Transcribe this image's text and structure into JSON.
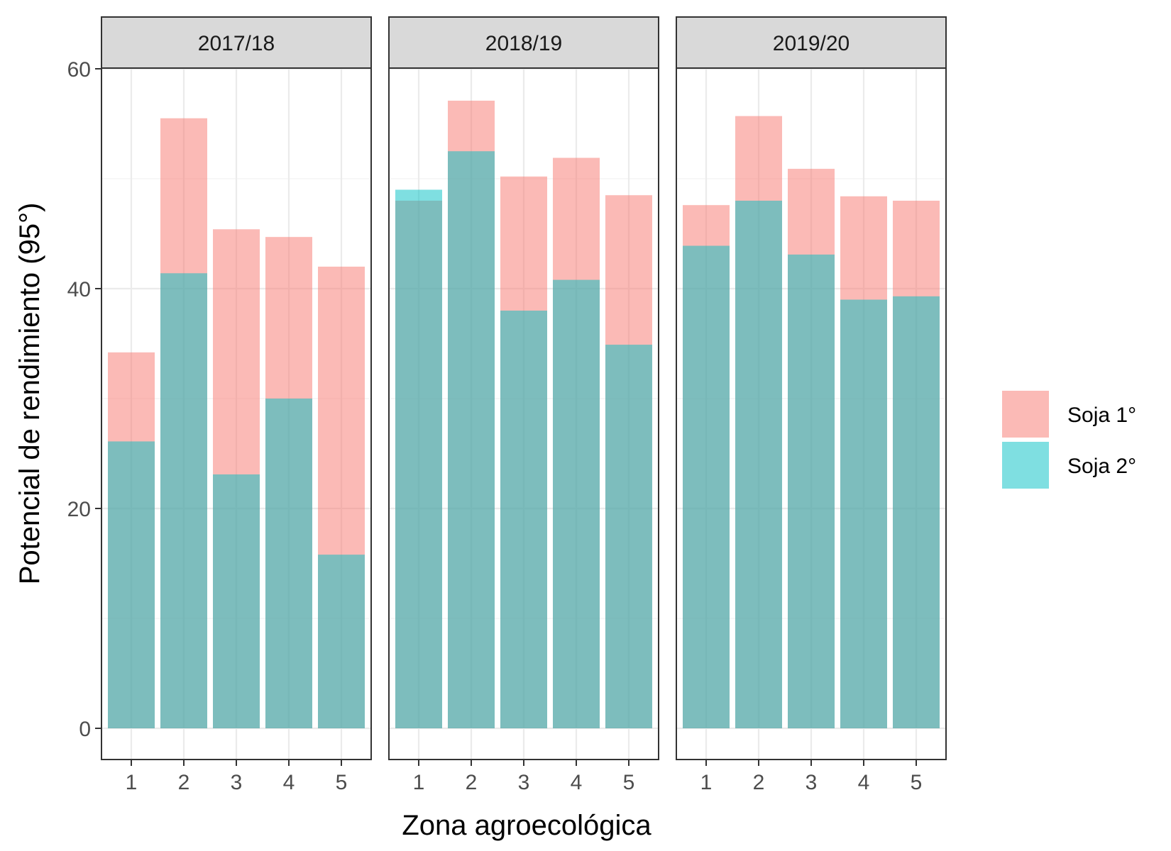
{
  "chart_data": {
    "type": "bar",
    "subtype": "faceted-overlapping-bar",
    "xlabel": "Zona agroecológica",
    "ylabel": "Potencial de rendimiento (95°)",
    "ylim": [
      0,
      60
    ],
    "yticks": [
      0,
      20,
      40,
      60
    ],
    "grid": true,
    "legend_position": "right",
    "categories": [
      "1",
      "2",
      "3",
      "4",
      "5"
    ],
    "colors": {
      "Soja 1°": "#f8766d",
      "Soja 2°": "#00bfc4"
    },
    "legend": [
      "Soja 1°",
      "Soja 2°"
    ],
    "panels": [
      {
        "title": "2017/18",
        "series": [
          {
            "name": "Soja 1°",
            "values": [
              34.2,
              55.5,
              45.4,
              44.7,
              42.0
            ]
          },
          {
            "name": "Soja 2°",
            "values": [
              26.1,
              41.4,
              23.1,
              30.0,
              15.8
            ]
          }
        ]
      },
      {
        "title": "2018/19",
        "series": [
          {
            "name": "Soja 1°",
            "values": [
              48.0,
              57.1,
              50.2,
              51.9,
              48.5
            ]
          },
          {
            "name": "Soja 2°",
            "values": [
              49.0,
              52.5,
              38.0,
              40.8,
              34.9
            ]
          }
        ]
      },
      {
        "title": "2019/20",
        "series": [
          {
            "name": "Soja 1°",
            "values": [
              47.6,
              55.7,
              50.9,
              48.4,
              48.0
            ]
          },
          {
            "name": "Soja 2°",
            "values": [
              43.9,
              48.0,
              43.1,
              39.0,
              39.3
            ]
          }
        ]
      }
    ]
  }
}
